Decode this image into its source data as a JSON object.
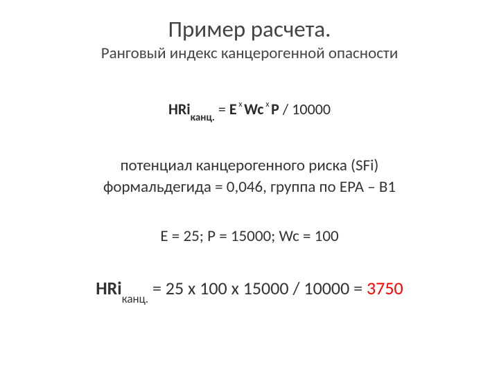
{
  "colors": {
    "background": "#ffffff",
    "text_primary": "#333333",
    "title": "#444444",
    "result_value": "#ff0000"
  },
  "typography": {
    "title_fontsize": 33,
    "subtitle_fontsize": 23,
    "formula_fontsize": 22,
    "desc_fontsize": 23,
    "values_fontsize": 23,
    "result_fontsize": 26,
    "sub_fontsize": 15,
    "sup_fontsize": 12
  },
  "title": "Пример расчета.",
  "subtitle": "Ранговый индекс канцерогенной опасности",
  "formula": {
    "lhs_prefix": "HRi",
    "lhs_sub": "канц.",
    "equals": " = ",
    "e": "E",
    "times1": " х ",
    "wc": "Wc",
    "times2": " х ",
    "p": "P",
    "tail": " / 10000"
  },
  "desc_line1": "потенциал канцерогенного риска (SFi)",
  "desc_line2": "формальдегида = 0,046, группа по ЕРА – В1",
  "values_text": "Е = 25; Р = 15000; Wc = 100",
  "result": {
    "lhs_prefix": "HRi",
    "lhs_sub": "канц.",
    "mid": " = 25 х 100 х 15000 / 10000 = ",
    "value": "3750"
  }
}
